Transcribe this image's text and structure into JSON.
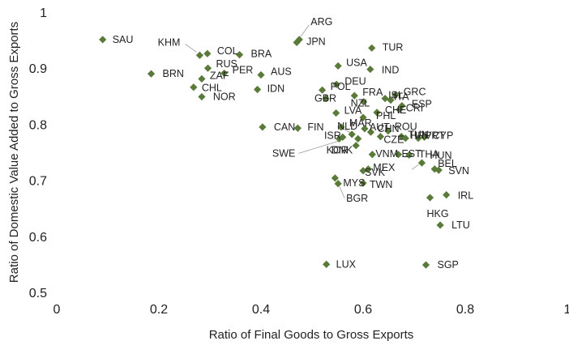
{
  "chart_data": {
    "type": "scatter",
    "title": "",
    "xlabel": "Ratio of Final Goods to Gross Exports",
    "ylabel": "Ratio of Domestic Value Added to Gross Exports",
    "xlim": [
      0,
      1
    ],
    "ylim": [
      0.5,
      1
    ],
    "xticks": [
      0,
      0.2,
      0.4,
      0.6,
      0.8,
      1
    ],
    "yticks": [
      0.5,
      0.6,
      0.7,
      0.8,
      0.9,
      1
    ],
    "xtick_labels": [
      "0",
      "0.2",
      "0.4",
      "0.6",
      "0.8",
      "1"
    ],
    "ytick_labels": [
      "0.5",
      "0.6",
      "0.7",
      "0.8",
      "0.9",
      "1"
    ],
    "grid": false,
    "marker_color": "#5a7a3a",
    "points": [
      {
        "label": "SAU",
        "x": 0.09,
        "y": 0.951
      },
      {
        "label": "ARG",
        "x": 0.475,
        "y": 0.951
      },
      {
        "label": "JPN",
        "x": 0.47,
        "y": 0.946
      },
      {
        "label": "KHM",
        "x": 0.28,
        "y": 0.923
      },
      {
        "label": "COL",
        "x": 0.295,
        "y": 0.926
      },
      {
        "label": "BRA",
        "x": 0.358,
        "y": 0.924
      },
      {
        "label": "TUR",
        "x": 0.617,
        "y": 0.936
      },
      {
        "label": "USA",
        "x": 0.551,
        "y": 0.904
      },
      {
        "label": "IND",
        "x": 0.614,
        "y": 0.898
      },
      {
        "label": "RUS",
        "x": 0.296,
        "y": 0.9
      },
      {
        "label": "PER",
        "x": 0.328,
        "y": 0.891
      },
      {
        "label": "AUS",
        "x": 0.4,
        "y": 0.888
      },
      {
        "label": "BRN",
        "x": 0.185,
        "y": 0.89
      },
      {
        "label": "ZAF",
        "x": 0.284,
        "y": 0.881
      },
      {
        "label": "CHL",
        "x": 0.268,
        "y": 0.866
      },
      {
        "label": "IDN",
        "x": 0.393,
        "y": 0.862
      },
      {
        "label": "NOR",
        "x": 0.284,
        "y": 0.849
      },
      {
        "label": "DEU",
        "x": 0.548,
        "y": 0.871
      },
      {
        "label": "POL",
        "x": 0.52,
        "y": 0.861
      },
      {
        "label": "FRA",
        "x": 0.583,
        "y": 0.851
      },
      {
        "label": "GBR",
        "x": 0.527,
        "y": 0.846
      },
      {
        "label": "NZL",
        "x": 0.601,
        "y": 0.84
      },
      {
        "label": "GRC",
        "x": 0.663,
        "y": 0.852
      },
      {
        "label": "ITA",
        "x": 0.654,
        "y": 0.843
      },
      {
        "label": "ISL",
        "x": 0.643,
        "y": 0.846
      },
      {
        "label": "ESP",
        "x": 0.676,
        "y": 0.833
      },
      {
        "label": "CRI",
        "x": 0.671,
        "y": 0.826
      },
      {
        "label": "LVA",
        "x": 0.547,
        "y": 0.82
      },
      {
        "label": "CHE",
        "x": 0.627,
        "y": 0.821
      },
      {
        "label": "PHL",
        "x": 0.6,
        "y": 0.812
      },
      {
        "label": "CAN",
        "x": 0.403,
        "y": 0.795
      },
      {
        "label": "FIN",
        "x": 0.472,
        "y": 0.793
      },
      {
        "label": "MAR",
        "x": 0.557,
        "y": 0.795
      },
      {
        "label": "NLD",
        "x": 0.578,
        "y": 0.782
      },
      {
        "label": "AUT",
        "x": 0.603,
        "y": 0.792
      },
      {
        "label": "CHN",
        "x": 0.615,
        "y": 0.786
      },
      {
        "label": "ROU",
        "x": 0.649,
        "y": 0.788
      },
      {
        "label": "HRV",
        "x": 0.683,
        "y": 0.775
      },
      {
        "label": "KOR",
        "x": 0.59,
        "y": 0.774
      },
      {
        "label": "PRT",
        "x": 0.708,
        "y": 0.775
      },
      {
        "label": "CYP",
        "x": 0.72,
        "y": 0.777
      },
      {
        "label": "ISR",
        "x": 0.56,
        "y": 0.777
      },
      {
        "label": "SWE",
        "x": 0.553,
        "y": 0.774
      },
      {
        "label": "CZE",
        "x": 0.634,
        "y": 0.778
      },
      {
        "label": "TUN",
        "x": 0.675,
        "y": 0.778
      },
      {
        "label": "DNK",
        "x": 0.586,
        "y": 0.762
      },
      {
        "label": "VNM",
        "x": 0.618,
        "y": 0.746
      },
      {
        "label": "EST",
        "x": 0.669,
        "y": 0.746
      },
      {
        "label": "THA",
        "x": 0.69,
        "y": 0.745
      },
      {
        "label": "HUN",
        "x": 0.715,
        "y": 0.731
      },
      {
        "label": "BEL",
        "x": 0.74,
        "y": 0.72
      },
      {
        "label": "SVN",
        "x": 0.748,
        "y": 0.718
      },
      {
        "label": "MEX",
        "x": 0.61,
        "y": 0.72
      },
      {
        "label": "SVK",
        "x": 0.6,
        "y": 0.717
      },
      {
        "label": "MYS",
        "x": 0.545,
        "y": 0.704
      },
      {
        "label": "TWN",
        "x": 0.6,
        "y": 0.695
      },
      {
        "label": "BGR",
        "x": 0.551,
        "y": 0.694
      },
      {
        "label": "IRL",
        "x": 0.763,
        "y": 0.674
      },
      {
        "label": "HKG",
        "x": 0.731,
        "y": 0.669
      },
      {
        "label": "LTU",
        "x": 0.751,
        "y": 0.62
      },
      {
        "label": "LUX",
        "x": 0.528,
        "y": 0.55
      },
      {
        "label": "SGP",
        "x": 0.723,
        "y": 0.549
      }
    ]
  }
}
